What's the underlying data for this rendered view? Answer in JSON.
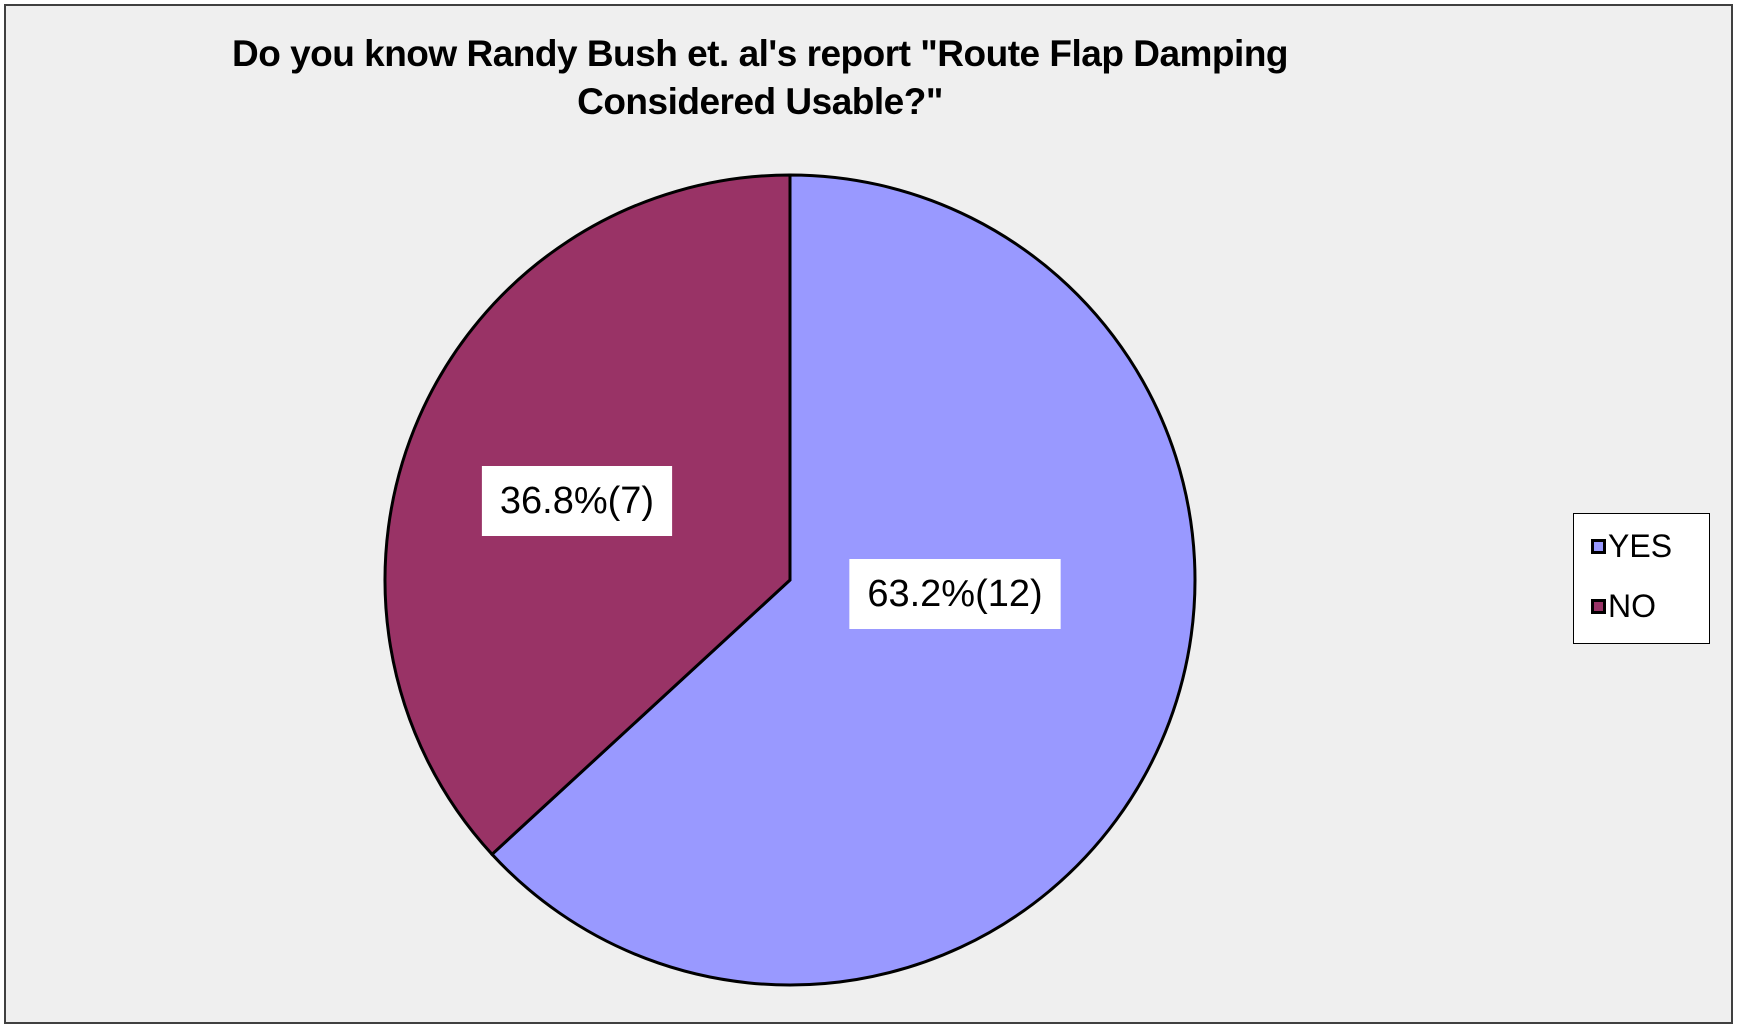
{
  "chart_data": {
    "type": "pie",
    "title": "Do you know Randy Bush et. al's report \"Route Flap Damping Considered Usable?\"",
    "slices": [
      {
        "label": "YES",
        "value": 12,
        "percent": 63.2,
        "data_label": "63.2%(12)",
        "color": "#9999ff"
      },
      {
        "label": "NO",
        "value": 7,
        "percent": 36.8,
        "data_label": "36.8%(7)",
        "color": "#993366"
      }
    ],
    "legend": {
      "position": "right",
      "items": [
        "YES",
        "NO"
      ]
    }
  }
}
